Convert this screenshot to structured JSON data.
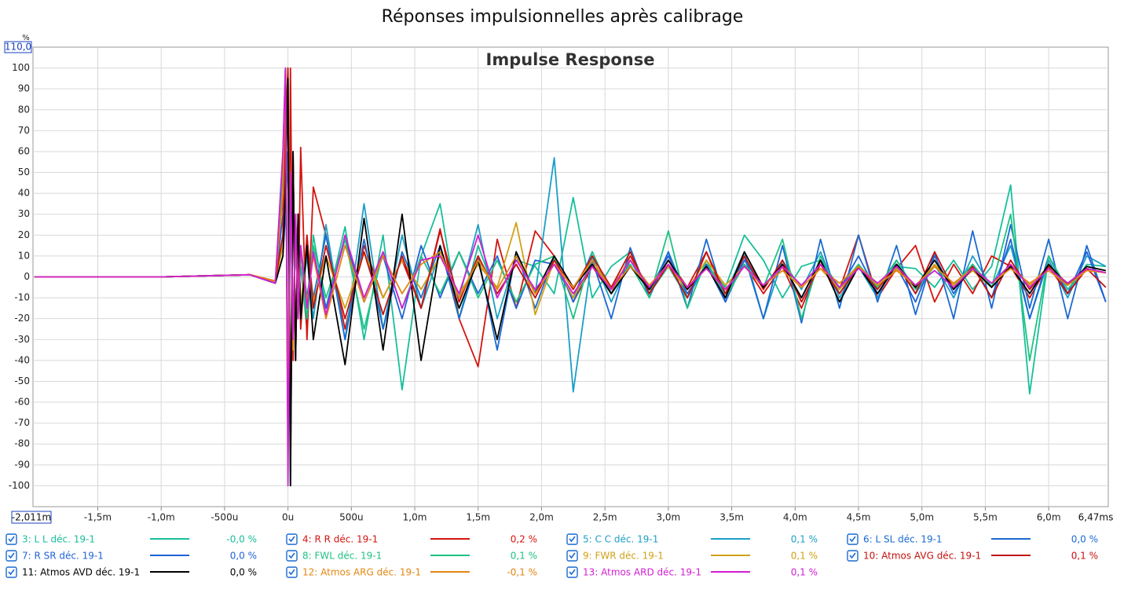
{
  "chart_data": {
    "type": "line",
    "title": "Réponses impulsionnelles après calibrage",
    "subtitle": "Impulse Response",
    "y_unit": "%",
    "ylim_label": "110,0",
    "xlim_labels": [
      "-2,011m",
      "6,47ms"
    ],
    "xlim": [
      -2.011,
      6.47
    ],
    "ylim": [
      -110,
      110
    ],
    "yticks": [
      -100,
      -90,
      -80,
      -70,
      -60,
      -50,
      -40,
      -30,
      -20,
      -10,
      0,
      10,
      20,
      30,
      40,
      50,
      60,
      70,
      80,
      90,
      100
    ],
    "xticks": [
      {
        "value": -1.5,
        "label": "-1,5m"
      },
      {
        "value": -1.0,
        "label": "-1,0m"
      },
      {
        "value": -0.5,
        "label": "-500u"
      },
      {
        "value": 0,
        "label": "0u"
      },
      {
        "value": 0.5,
        "label": "500u"
      },
      {
        "value": 1.0,
        "label": "1,0m"
      },
      {
        "value": 1.5,
        "label": "1,5m"
      },
      {
        "value": 2.0,
        "label": "2,0m"
      },
      {
        "value": 2.5,
        "label": "2,5m"
      },
      {
        "value": 3.0,
        "label": "3,0m"
      },
      {
        "value": 3.5,
        "label": "3,5m"
      },
      {
        "value": 4.0,
        "label": "4,0m"
      },
      {
        "value": 4.5,
        "label": "4,5m"
      },
      {
        "value": 5.0,
        "label": "5,0m"
      },
      {
        "value": 5.5,
        "label": "5,5m"
      },
      {
        "value": 6.0,
        "label": "6,0m"
      }
    ],
    "grid": true,
    "x": [
      -2.0,
      -1.0,
      -0.3,
      -0.1,
      -0.04,
      -0.02,
      0,
      0.02,
      0.04,
      0.06,
      0.08,
      0.1,
      0.15,
      0.2,
      0.3,
      0.45,
      0.6,
      0.75,
      0.9,
      1.05,
      1.2,
      1.35,
      1.5,
      1.65,
      1.8,
      1.95,
      2.1,
      2.25,
      2.4,
      2.55,
      2.7,
      2.85,
      3.0,
      3.15,
      3.3,
      3.45,
      3.6,
      3.75,
      3.9,
      4.05,
      4.2,
      4.35,
      4.5,
      4.65,
      4.8,
      4.95,
      5.1,
      5.25,
      5.4,
      5.55,
      5.7,
      5.85,
      6.0,
      6.15,
      6.3,
      6.45
    ],
    "series": [
      {
        "name": "3: L L déc. 19-1",
        "readout": "-0,0 %",
        "color": "#17bf9a",
        "values": [
          0,
          0,
          1,
          -3,
          60,
          100,
          -60,
          30,
          -20,
          15,
          -10,
          5,
          -25,
          20,
          -15,
          24,
          -30,
          20,
          -54,
          10,
          35,
          -20,
          15,
          -10,
          8,
          5,
          -8,
          38,
          -10,
          5,
          12,
          -8,
          5,
          -10,
          6,
          -5,
          20,
          8,
          -10,
          5,
          8,
          -5,
          6,
          -8,
          5,
          4,
          -5,
          8,
          -6,
          5,
          44,
          -56,
          10,
          -8,
          6,
          5
        ]
      },
      {
        "name": "4: R R déc. 19-1",
        "readout": "0,2 %",
        "color": "#d4140f",
        "values": [
          0,
          0,
          1,
          -2,
          40,
          95,
          -80,
          100,
          -40,
          30,
          -20,
          62,
          -30,
          43,
          20,
          -25,
          15,
          -10,
          8,
          -15,
          23,
          -20,
          -43,
          18,
          -15,
          22,
          10,
          -12,
          5,
          -8,
          10,
          -6,
          8,
          -5,
          12,
          -10,
          6,
          -8,
          5,
          -15,
          8,
          -6,
          20,
          -10,
          4,
          15,
          -12,
          6,
          -8,
          10,
          5,
          -10,
          6,
          -8,
          4,
          2
        ]
      },
      {
        "name": "5: C C déc. 19-1",
        "readout": "0,1 %",
        "color": "#1b9fc6",
        "values": [
          0,
          0,
          1,
          -2,
          20,
          50,
          100,
          -80,
          40,
          -30,
          20,
          -15,
          10,
          -20,
          25,
          -30,
          35,
          -25,
          20,
          -15,
          12,
          -10,
          25,
          -20,
          10,
          -8,
          57,
          -55,
          10,
          -12,
          8,
          -8,
          12,
          -10,
          6,
          -8,
          12,
          -20,
          8,
          -6,
          12,
          -10,
          5,
          -10,
          8,
          -8,
          6,
          -10,
          10,
          -5,
          15,
          -20,
          8,
          -10,
          10,
          5
        ]
      },
      {
        "name": "6: L SL déc. 19-1",
        "readout": "0,0 %",
        "color": "#1a6ad2",
        "values": [
          0,
          0,
          1,
          -3,
          10,
          30,
          60,
          -100,
          60,
          -40,
          30,
          -20,
          15,
          -10,
          20,
          -30,
          18,
          -25,
          12,
          -10,
          15,
          -20,
          10,
          -35,
          12,
          -15,
          10,
          -12,
          8,
          -20,
          14,
          -10,
          12,
          -15,
          18,
          -12,
          10,
          -20,
          15,
          -22,
          18,
          -15,
          20,
          -12,
          15,
          -18,
          12,
          -20,
          22,
          -15,
          25,
          -15,
          18,
          -20,
          15,
          -12
        ]
      },
      {
        "name": "7: R SR déc. 19-1",
        "readout": "0,0 %",
        "color": "#1f63d6",
        "values": [
          0,
          0,
          1,
          -3,
          30,
          80,
          -60,
          40,
          -30,
          25,
          -20,
          15,
          -10,
          12,
          -15,
          18,
          -12,
          10,
          -20,
          15,
          -10,
          12,
          -8,
          10,
          -15,
          8,
          6,
          -10,
          12,
          -8,
          5,
          -6,
          10,
          -8,
          6,
          -12,
          8,
          -5,
          6,
          -10,
          8,
          -6,
          10,
          -8,
          5,
          -12,
          10,
          -8,
          6,
          -10,
          18,
          -20,
          10,
          -8,
          12,
          -12
        ]
      },
      {
        "name": "8: FWL déc. 19-1",
        "readout": "0,1 %",
        "color": "#1fc283",
        "values": [
          0,
          0,
          1,
          -2,
          50,
          100,
          -70,
          40,
          -30,
          20,
          -15,
          12,
          -20,
          15,
          -10,
          18,
          -25,
          12,
          -15,
          10,
          -8,
          12,
          -10,
          8,
          -12,
          6,
          10,
          -20,
          12,
          -8,
          6,
          -10,
          22,
          -15,
          8,
          -10,
          6,
          -5,
          18,
          -20,
          10,
          -8,
          6,
          -5,
          8,
          -6,
          5,
          -4,
          6,
          -5,
          30,
          -40,
          10,
          -6,
          5,
          3
        ]
      },
      {
        "name": "9: FWR déc. 19-1",
        "readout": "0,1 %",
        "color": "#d2a016",
        "values": [
          0,
          0,
          1,
          -2,
          15,
          60,
          100,
          -90,
          50,
          -30,
          20,
          -15,
          18,
          -12,
          10,
          -15,
          12,
          -10,
          8,
          -6,
          10,
          -8,
          6,
          -5,
          26,
          -18,
          8,
          -10,
          6,
          -5,
          8,
          -4,
          5,
          -6,
          8,
          -4,
          5,
          -5,
          6,
          -5,
          4,
          -6,
          5,
          -3,
          4,
          -5,
          6,
          -4,
          3,
          -5,
          6,
          -4,
          5,
          -3,
          4,
          2
        ]
      },
      {
        "name": "10: Atmos AVG déc. 19-1",
        "readout": "0,1 %",
        "color": "#c3120e",
        "values": [
          0,
          0,
          1,
          -2,
          20,
          70,
          100,
          -85,
          60,
          -40,
          30,
          -25,
          20,
          -15,
          15,
          -20,
          12,
          -18,
          10,
          -15,
          22,
          -12,
          10,
          -8,
          6,
          -10,
          8,
          -6,
          10,
          -5,
          12,
          -8,
          6,
          -10,
          12,
          -8,
          10,
          -6,
          8,
          -12,
          6,
          -8,
          5,
          -6,
          6,
          -8,
          12,
          -6,
          5,
          -10,
          8,
          -6,
          5,
          -8,
          4,
          -5
        ]
      },
      {
        "name": "11: Atmos AVD déc. 19-1",
        "readout": "0,0 %",
        "color": "#000000",
        "values": [
          0,
          0,
          1,
          -3,
          10,
          40,
          95,
          -100,
          60,
          -40,
          30,
          -20,
          15,
          -30,
          10,
          -42,
          28,
          -35,
          30,
          -40,
          15,
          -15,
          8,
          -30,
          12,
          -8,
          10,
          -5,
          6,
          -8,
          5,
          -6,
          8,
          -6,
          5,
          -10,
          12,
          -5,
          6,
          -10,
          8,
          -12,
          5,
          -8,
          6,
          -5,
          8,
          -6,
          4,
          -5,
          5,
          -8,
          6,
          -4,
          5,
          3
        ]
      },
      {
        "name": "12: Atmos ARG déc. 19-1",
        "readout": "-0,1 %",
        "color": "#e48612",
        "values": [
          0,
          0,
          1,
          -2,
          40,
          100,
          -70,
          50,
          -35,
          25,
          -20,
          15,
          -12,
          10,
          -20,
          15,
          -12,
          10,
          -8,
          6,
          12,
          -10,
          8,
          -6,
          10,
          -8,
          6,
          -5,
          8,
          -6,
          5,
          -4,
          6,
          -5,
          4,
          -6,
          5,
          -4,
          3,
          -5,
          4,
          -3,
          5,
          -4,
          3,
          -4,
          5,
          -3,
          4,
          -3,
          4,
          -3,
          3,
          -4,
          3,
          2
        ]
      },
      {
        "name": "13: Atmos ARD déc. 19-1",
        "readout": "0,1 %",
        "color": "#d21fd2",
        "values": [
          0,
          0,
          1,
          -3,
          60,
          100,
          -100,
          50,
          -30,
          30,
          -20,
          15,
          -15,
          12,
          -18,
          20,
          -10,
          12,
          -15,
          8,
          10,
          -8,
          20,
          -10,
          8,
          -6,
          6,
          -8,
          5,
          -6,
          8,
          -5,
          6,
          -5,
          4,
          -6,
          5,
          -4,
          5,
          -4,
          6,
          -5,
          4,
          -3,
          5,
          -4,
          3,
          -5,
          4,
          -3,
          6,
          -5,
          4,
          -3,
          4,
          2
        ]
      }
    ]
  }
}
